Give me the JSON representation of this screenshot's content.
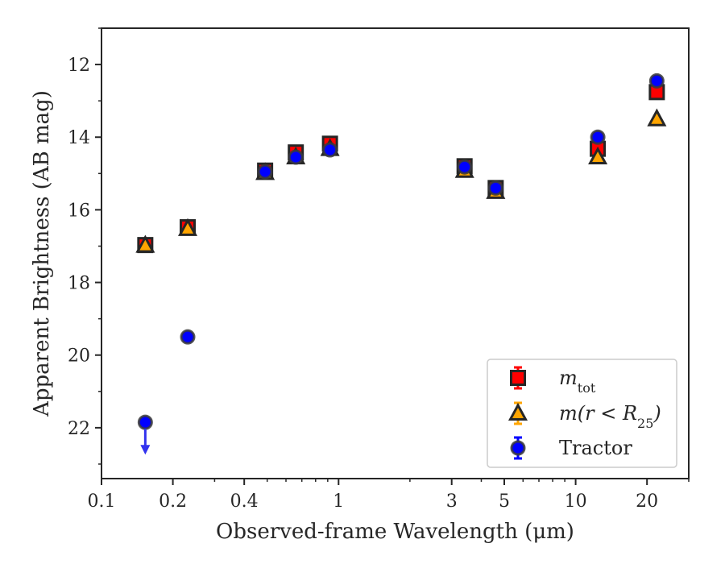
{
  "chart_data": {
    "type": "scatter",
    "title": "",
    "xlabel": "Observed-frame Wavelength (μm)",
    "ylabel": "Apparent Brightness (AB mag)",
    "xscale": "log",
    "xlim": [
      0.1,
      30
    ],
    "ylim": [
      23.4,
      11.0
    ],
    "y_inverted": true,
    "x_ticks": [
      0.1,
      0.2,
      0.4,
      1,
      3,
      5,
      10,
      20
    ],
    "x_tick_labels": [
      "0.1",
      "0.2",
      "0.4",
      "1",
      "3",
      "5",
      "10",
      "20"
    ],
    "y_ticks": [
      12,
      14,
      16,
      18,
      20,
      22
    ],
    "y_tick_labels": [
      "12",
      "14",
      "16",
      "18",
      "20",
      "22"
    ],
    "legend_position": "lower right",
    "series": [
      {
        "name": "m_tot",
        "marker": "square",
        "color": "#ff0000",
        "errorbar_color": "#ff0000",
        "points": [
          {
            "x": 0.153,
            "y": 16.97
          },
          {
            "x": 0.231,
            "y": 16.48
          },
          {
            "x": 0.49,
            "y": 14.92
          },
          {
            "x": 0.66,
            "y": 14.42
          },
          {
            "x": 0.92,
            "y": 14.18
          },
          {
            "x": 3.4,
            "y": 14.8
          },
          {
            "x": 4.6,
            "y": 15.4
          },
          {
            "x": 12.4,
            "y": 14.32
          },
          {
            "x": 22.0,
            "y": 12.76
          }
        ]
      },
      {
        "name": "m(r < R25)",
        "marker": "triangle",
        "color": "#ffa500",
        "errorbar_color": "#ffa500",
        "points": [
          {
            "x": 0.153,
            "y": 16.98
          },
          {
            "x": 0.231,
            "y": 16.52
          },
          {
            "x": 0.49,
            "y": 14.98
          },
          {
            "x": 0.66,
            "y": 14.55
          },
          {
            "x": 0.92,
            "y": 14.32
          },
          {
            "x": 3.4,
            "y": 14.92
          },
          {
            "x": 4.6,
            "y": 15.5
          },
          {
            "x": 12.4,
            "y": 14.55
          },
          {
            "x": 22.0,
            "y": 13.5
          }
        ]
      },
      {
        "name": "Tractor",
        "marker": "circle",
        "color": "#0000ff",
        "errorbar_color": "#0000ff",
        "points": [
          {
            "x": 0.153,
            "y": 21.85,
            "upper_limit": true
          },
          {
            "x": 0.231,
            "y": 19.5
          },
          {
            "x": 0.49,
            "y": 14.95
          },
          {
            "x": 0.66,
            "y": 14.55
          },
          {
            "x": 0.92,
            "y": 14.35
          },
          {
            "x": 3.4,
            "y": 14.82
          },
          {
            "x": 4.6,
            "y": 15.4
          },
          {
            "x": 12.4,
            "y": 14.0
          },
          {
            "x": 22.0,
            "y": 12.45
          }
        ]
      }
    ]
  },
  "legend": {
    "entries": [
      {
        "label_main": "m",
        "label_sub": "tot",
        "label_tail": ""
      },
      {
        "label_main": "m(r < R",
        "label_sub": "25",
        "label_tail": ")"
      },
      {
        "label_main": "Tractor",
        "label_sub": "",
        "label_tail": ""
      }
    ]
  }
}
